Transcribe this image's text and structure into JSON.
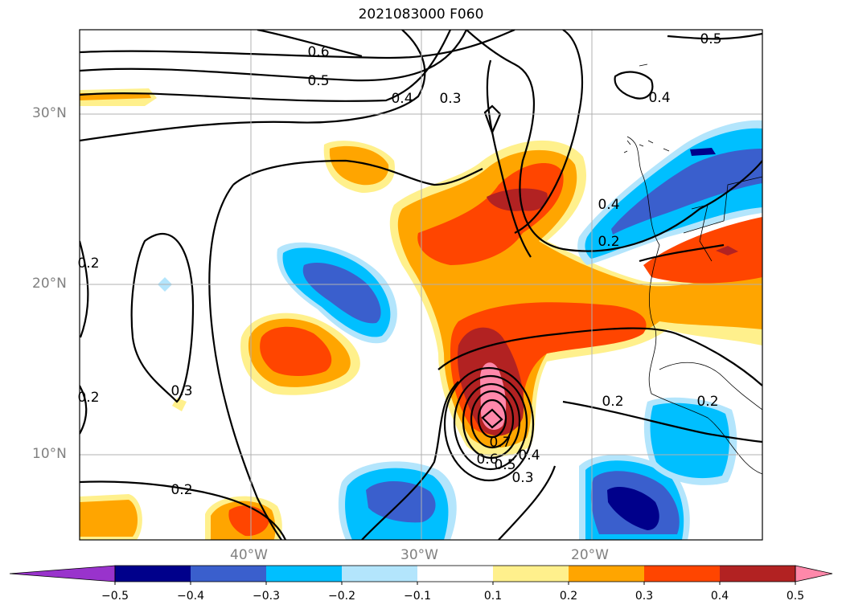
{
  "title": "2021083000 F060",
  "lat_labels": [
    "30°N",
    "20°N",
    "10°N"
  ],
  "lon_labels": [
    "40°W",
    "30°W",
    "20°W"
  ],
  "contour_labels": [
    "0.6",
    "0.5",
    "0.4",
    "0.3",
    "0.5",
    "0.4",
    "0.4",
    "0.2",
    "0.2",
    "0.2",
    "0.3",
    "0.2",
    "0.2",
    "0.6",
    "0.5",
    "0.4",
    "0.3",
    "0.2",
    "0.7"
  ],
  "colorbar": {
    "ticks": [
      "−0.5",
      "−0.4",
      "−0.3",
      "−0.2",
      "−0.1",
      "0.1",
      "0.2",
      "0.3",
      "0.4",
      "0.5"
    ],
    "colors": [
      "#9933cc",
      "#00008b",
      "#3a5fcd",
      "#00bfff",
      "#b3e5fc",
      "#ffffff",
      "#fff08c",
      "#ffa500",
      "#ff4500",
      "#b22222",
      "#ff88aa"
    ]
  }
}
